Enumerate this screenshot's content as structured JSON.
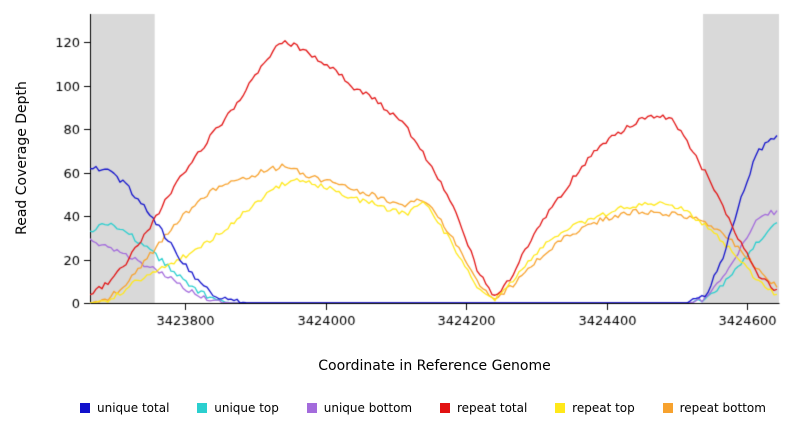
{
  "figure": {
    "background": "#ffffff",
    "axis_color": "#000000",
    "band_color": "#d9d9d9"
  },
  "chart_data": {
    "type": "line",
    "title": "",
    "xlabel": "Coordinate in Reference Genome",
    "ylabel": "Read Coverage Depth",
    "xlim": [
      3423665,
      3424645
    ],
    "ylim": [
      0,
      133
    ],
    "x_ticks": [
      3423800,
      3424000,
      3424200,
      3424400,
      3424600
    ],
    "y_ticks": [
      0,
      20,
      40,
      60,
      80,
      100,
      120
    ],
    "grid": false,
    "legend_position": "bottom",
    "shaded_regions": [
      {
        "name": "left-repeat-flank",
        "x0": 3423665,
        "x1": 3423757,
        "color": "#d9d9d9"
      },
      {
        "name": "right-repeat-flank",
        "x0": 3424537,
        "x1": 3424645,
        "color": "#d9d9d9"
      }
    ],
    "x": [
      3423665,
      3423690,
      3423715,
      3423740,
      3423765,
      3423790,
      3423815,
      3423840,
      3423865,
      3423890,
      3423915,
      3423940,
      3423965,
      3423990,
      3424015,
      3424040,
      3424065,
      3424090,
      3424115,
      3424140,
      3424165,
      3424190,
      3424215,
      3424240,
      3424265,
      3424290,
      3424315,
      3424340,
      3424365,
      3424390,
      3424415,
      3424440,
      3424465,
      3424490,
      3424515,
      3424540,
      3424565,
      3424590,
      3424615,
      3424640
    ],
    "series": [
      {
        "name": "unique total",
        "color": "#1111cc",
        "values": [
          63,
          61,
          55,
          45,
          34,
          22,
          11,
          4,
          1,
          0,
          0,
          0,
          0,
          0,
          0,
          0,
          0,
          0,
          0,
          0,
          0,
          0,
          0,
          0,
          0,
          0,
          0,
          0,
          0,
          0,
          0,
          0,
          0,
          0,
          0,
          3,
          20,
          48,
          70,
          77
        ]
      },
      {
        "name": "unique top",
        "color": "#2bcfcf",
        "values": [
          33,
          37,
          33,
          27,
          20,
          13,
          6,
          2,
          0,
          0,
          0,
          0,
          0,
          0,
          0,
          0,
          0,
          0,
          0,
          0,
          0,
          0,
          0,
          0,
          0,
          0,
          0,
          0,
          0,
          0,
          0,
          0,
          0,
          0,
          0,
          1,
          8,
          18,
          28,
          37
        ]
      },
      {
        "name": "unique bottom",
        "color": "#a36bdc",
        "values": [
          29,
          26,
          22,
          18,
          14,
          9,
          4,
          1,
          0,
          0,
          0,
          0,
          0,
          0,
          0,
          0,
          0,
          0,
          0,
          0,
          0,
          0,
          0,
          0,
          0,
          0,
          0,
          0,
          0,
          0,
          0,
          0,
          0,
          0,
          0,
          2,
          11,
          25,
          40,
          42
        ]
      },
      {
        "name": "repeat total",
        "color": "#e21212",
        "values": [
          4,
          9,
          18,
          30,
          43,
          56,
          67,
          78,
          88,
          100,
          112,
          121,
          117,
          112,
          107,
          99,
          95,
          88,
          81,
          68,
          55,
          38,
          16,
          2,
          12,
          28,
          41,
          52,
          63,
          72,
          78,
          83,
          86,
          85,
          74,
          60,
          44,
          28,
          13,
          6
        ]
      },
      {
        "name": "repeat top",
        "color": "#ffe81a",
        "values": [
          0,
          1,
          6,
          12,
          16,
          20,
          24,
          30,
          36,
          43,
          50,
          55,
          57,
          54,
          52,
          48,
          46,
          43,
          41,
          46,
          35,
          22,
          8,
          1,
          10,
          20,
          28,
          33,
          37,
          40,
          43,
          45,
          46,
          45,
          42,
          36,
          28,
          20,
          10,
          4
        ]
      },
      {
        "name": "repeat bottom",
        "color": "#f7a22e",
        "values": [
          0,
          2,
          8,
          18,
          28,
          38,
          45,
          52,
          55,
          58,
          61,
          63,
          60,
          57,
          55,
          52,
          50,
          47,
          45,
          48,
          38,
          25,
          10,
          1,
          8,
          16,
          24,
          30,
          34,
          38,
          40,
          42,
          42,
          41,
          40,
          37,
          32,
          25,
          15,
          8
        ]
      }
    ],
    "draw_order": [
      1,
      2,
      5,
      4,
      0,
      3
    ]
  }
}
